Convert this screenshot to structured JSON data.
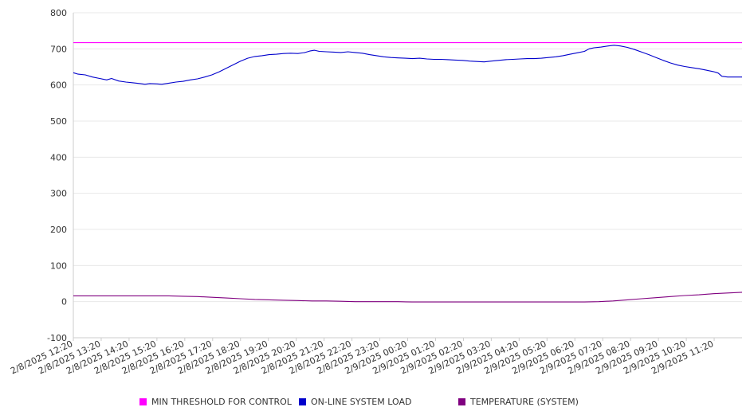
{
  "chart_data": {
    "type": "line",
    "ylim": [
      -100,
      800
    ],
    "yticks": [
      -100,
      0,
      100,
      200,
      300,
      400,
      500,
      600,
      700,
      800
    ],
    "xlim": [
      0,
      1400
    ],
    "x_tick_labels": [
      "2/8/2025 12:20",
      "2/8/2025 13:20",
      "2/8/2025 14:20",
      "2/8/2025 15:20",
      "2/8/2025 16:20",
      "2/8/2025 17:20",
      "2/8/2025 18:20",
      "2/8/2025 19:20",
      "2/8/2025 20:20",
      "2/8/2025 21:20",
      "2/8/2025 22:20",
      "2/8/2025 23:20",
      "2/9/2025 00:20",
      "2/9/2025 01:20",
      "2/9/2025 02:20",
      "2/9/2025 03:20",
      "2/9/2025 04:20",
      "2/9/2025 05:20",
      "2/9/2025 06:20",
      "2/9/2025 07:20",
      "2/9/2025 08:20",
      "2/9/2025 09:20",
      "2/9/2025 10:20",
      "2/9/2025 11:20"
    ],
    "grid": true,
    "legend_position": "bottom",
    "series": [
      {
        "name": "MIN THRESHOLD FOR CONTROL",
        "color": "#ff00ff",
        "points": [
          [
            0,
            717
          ],
          [
            1400,
            717
          ]
        ]
      },
      {
        "name": "ON-LINE SYSTEM LOAD",
        "color": "#0000cc",
        "points": [
          [
            0,
            634
          ],
          [
            10,
            630
          ],
          [
            25,
            628
          ],
          [
            40,
            622
          ],
          [
            55,
            618
          ],
          [
            70,
            614
          ],
          [
            80,
            618
          ],
          [
            95,
            611
          ],
          [
            110,
            608
          ],
          [
            125,
            606
          ],
          [
            140,
            604
          ],
          [
            150,
            602
          ],
          [
            160,
            604
          ],
          [
            175,
            603
          ],
          [
            185,
            602
          ],
          [
            200,
            605
          ],
          [
            215,
            608
          ],
          [
            230,
            610
          ],
          [
            245,
            614
          ],
          [
            260,
            617
          ],
          [
            275,
            622
          ],
          [
            290,
            628
          ],
          [
            305,
            636
          ],
          [
            320,
            646
          ],
          [
            335,
            656
          ],
          [
            350,
            666
          ],
          [
            365,
            674
          ],
          [
            380,
            679
          ],
          [
            395,
            681
          ],
          [
            410,
            684
          ],
          [
            425,
            685
          ],
          [
            440,
            687
          ],
          [
            455,
            688
          ],
          [
            470,
            687
          ],
          [
            485,
            690
          ],
          [
            495,
            694
          ],
          [
            505,
            696
          ],
          [
            515,
            693
          ],
          [
            530,
            692
          ],
          [
            545,
            691
          ],
          [
            560,
            690
          ],
          [
            575,
            692
          ],
          [
            590,
            690
          ],
          [
            605,
            688
          ],
          [
            620,
            684
          ],
          [
            635,
            681
          ],
          [
            650,
            678
          ],
          [
            665,
            676
          ],
          [
            680,
            675
          ],
          [
            695,
            674
          ],
          [
            710,
            673
          ],
          [
            725,
            674
          ],
          [
            740,
            672
          ],
          [
            755,
            671
          ],
          [
            770,
            671
          ],
          [
            785,
            670
          ],
          [
            800,
            669
          ],
          [
            815,
            668
          ],
          [
            830,
            666
          ],
          [
            845,
            665
          ],
          [
            860,
            664
          ],
          [
            875,
            666
          ],
          [
            890,
            668
          ],
          [
            905,
            670
          ],
          [
            920,
            671
          ],
          [
            935,
            672
          ],
          [
            950,
            673
          ],
          [
            965,
            673
          ],
          [
            980,
            674
          ],
          [
            995,
            676
          ],
          [
            1010,
            678
          ],
          [
            1025,
            681
          ],
          [
            1040,
            685
          ],
          [
            1055,
            689
          ],
          [
            1070,
            693
          ],
          [
            1080,
            700
          ],
          [
            1090,
            703
          ],
          [
            1105,
            705
          ],
          [
            1120,
            708
          ],
          [
            1132,
            710
          ],
          [
            1145,
            708
          ],
          [
            1160,
            704
          ],
          [
            1175,
            698
          ],
          [
            1190,
            691
          ],
          [
            1205,
            684
          ],
          [
            1220,
            676
          ],
          [
            1235,
            668
          ],
          [
            1250,
            661
          ],
          [
            1265,
            655
          ],
          [
            1280,
            651
          ],
          [
            1295,
            648
          ],
          [
            1310,
            645
          ],
          [
            1325,
            641
          ],
          [
            1340,
            637
          ],
          [
            1350,
            633
          ],
          [
            1358,
            624
          ],
          [
            1370,
            622
          ],
          [
            1385,
            622
          ],
          [
            1400,
            622
          ]
        ]
      },
      {
        "name": "TEMPERATURE (SYSTEM)",
        "color": "#800080",
        "points": [
          [
            0,
            16
          ],
          [
            50,
            16
          ],
          [
            100,
            16
          ],
          [
            150,
            16
          ],
          [
            200,
            16
          ],
          [
            230,
            15
          ],
          [
            260,
            14
          ],
          [
            290,
            12
          ],
          [
            320,
            10
          ],
          [
            350,
            8
          ],
          [
            380,
            6
          ],
          [
            410,
            5
          ],
          [
            440,
            4
          ],
          [
            470,
            3
          ],
          [
            500,
            2
          ],
          [
            530,
            2
          ],
          [
            560,
            1
          ],
          [
            590,
            0
          ],
          [
            620,
            0
          ],
          [
            650,
            0
          ],
          [
            680,
            0
          ],
          [
            710,
            -1
          ],
          [
            740,
            -1
          ],
          [
            770,
            -1
          ],
          [
            800,
            -1
          ],
          [
            830,
            -1
          ],
          [
            860,
            -1
          ],
          [
            890,
            -1
          ],
          [
            920,
            -1
          ],
          [
            950,
            -1
          ],
          [
            980,
            -1
          ],
          [
            1010,
            -1
          ],
          [
            1040,
            -1
          ],
          [
            1070,
            -1
          ],
          [
            1100,
            0
          ],
          [
            1130,
            2
          ],
          [
            1160,
            5
          ],
          [
            1190,
            8
          ],
          [
            1220,
            11
          ],
          [
            1250,
            14
          ],
          [
            1280,
            17
          ],
          [
            1310,
            19
          ],
          [
            1340,
            22
          ],
          [
            1370,
            24
          ],
          [
            1400,
            26
          ]
        ]
      }
    ]
  }
}
